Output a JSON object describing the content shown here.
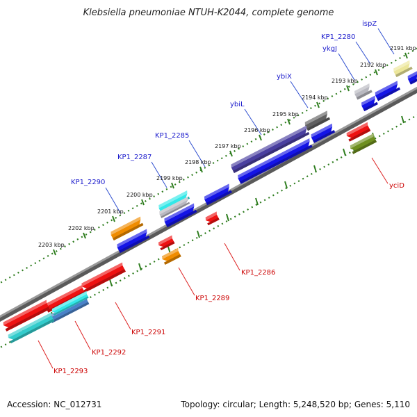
{
  "title": "Klebsiella pneumoniae NTUH-K2044, complete genome",
  "accession": "Accession: NC_012731",
  "topology": "Topology: circular; Length: 5,248,520 bp; Genes: 5,110",
  "colors": {
    "backbone": "#808080",
    "ruler": "#2e7d1e",
    "plus_label": "#1a1acc",
    "minus_label": "#cc0000",
    "leader_plus": "#2f4fd0",
    "leader_minus": "#dd2222"
  },
  "ruler_ticks": [
    {
      "label": "2191 kbp"
    },
    {
      "label": "2192 kbp"
    },
    {
      "label": "2193 kbp"
    },
    {
      "label": "2194 kbp"
    },
    {
      "label": "2195 kbp"
    },
    {
      "label": "2196 kbp"
    },
    {
      "label": "2197 kbp"
    },
    {
      "label": "2198 kbp"
    },
    {
      "label": "2199 kbp"
    },
    {
      "label": "2200 kbp"
    },
    {
      "label": "2201 kbp"
    },
    {
      "label": "2202 kbp"
    },
    {
      "label": "2203 kbp"
    }
  ],
  "genes_top": [
    {
      "name": "ispZ",
      "color": "#ece69a"
    },
    {
      "name": "KP1_2280",
      "color": "#1414e6"
    },
    {
      "name": "ykgJ",
      "color": "#b8b8c0"
    },
    {
      "name": "ybiX",
      "color": "#606060"
    },
    {
      "name": "ybiL",
      "color": "#4a3fa0"
    },
    {
      "name": "KP1_2285",
      "color": "#1414e6"
    },
    {
      "name": "KP1_2287",
      "color": "#33e8e8"
    },
    {
      "name": "KP1_2290",
      "color": "#f08c00"
    }
  ],
  "genes_bottom": [
    {
      "name": "yciD",
      "color": "#6e8f1f"
    },
    {
      "name": "KP1_2286",
      "color": "#ee1111"
    },
    {
      "name": "KP1_2289",
      "color": "#f08c00"
    },
    {
      "name": "KP1_2291",
      "color": "#ee1111"
    },
    {
      "name": "KP1_2292",
      "color": "#4a82c8"
    },
    {
      "name": "KP1_2293",
      "color": "#33cccc"
    }
  ]
}
